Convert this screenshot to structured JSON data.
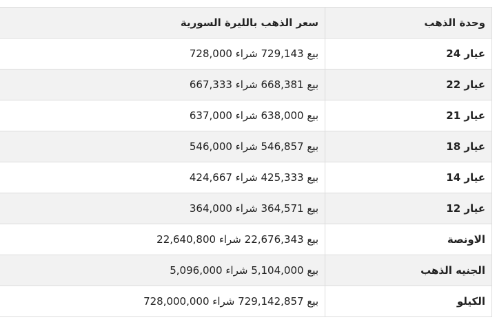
{
  "table": {
    "header": [
      "وحدة الذهب",
      "سعر الذهب بالليرة السورية"
    ],
    "rows": [
      [
        "عيار 24",
        "بيع 729,143 شراء 728,000"
      ],
      [
        "عيار 22",
        "بيع 668,381 شراء 667,333"
      ],
      [
        "عيار 21",
        "بيع 638,000 شراء 637,000"
      ],
      [
        "عيار 18",
        "بيع 546,857 شراء 546,000"
      ],
      [
        "عيار 14",
        "بيع 425,333 شراء 424,667"
      ],
      [
        "عيار 12",
        "بيع 364,571 شراء 364,000"
      ],
      [
        "الاونصة",
        "بيع 22,676,343 شراء 22,640,800"
      ],
      [
        "الجنيه الذهب",
        "بيع 5,104,000 شراء 5,096,000"
      ],
      [
        "الكيلو",
        "بيع 729,142,857 شراء 728,000,000"
      ]
    ]
  }
}
